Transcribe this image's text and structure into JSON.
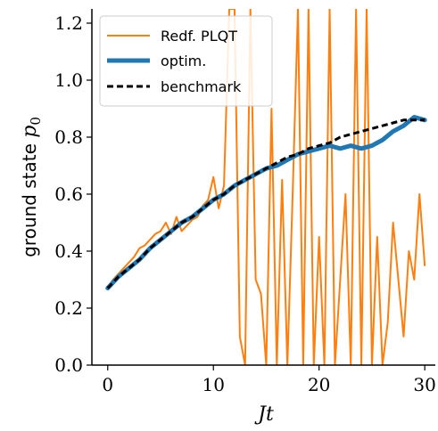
{
  "chart_data": {
    "type": "line",
    "xlabel": "Jt",
    "ylabel_prefix": "ground state ",
    "ylabel_symbol": "p",
    "ylabel_subscript": "0",
    "xlim": [
      -1.5,
      31
    ],
    "ylim": [
      0,
      1.25
    ],
    "xticks": [
      0,
      10,
      20,
      30
    ],
    "xtick_labels": [
      "0",
      "10",
      "20",
      "30"
    ],
    "yticks": [
      0,
      0.2,
      0.4,
      0.6,
      0.8,
      1.0,
      1.2
    ],
    "ytick_labels": [
      "0.0",
      "0.2",
      "0.4",
      "0.6",
      "0.8",
      "1.0",
      "1.2"
    ],
    "grid": false,
    "legend_position": "top-left",
    "series": [
      {
        "name": "Redf. PLQT",
        "color": "#ff7f0e",
        "style": "solid",
        "x": [
          0,
          0.5,
          1,
          1.5,
          2,
          2.5,
          3,
          3.5,
          4,
          4.5,
          5,
          5.5,
          6,
          6.5,
          7,
          7.5,
          8,
          8.5,
          9,
          9.5,
          10,
          10.5,
          11,
          11.5,
          12,
          12.5,
          13,
          13.5,
          14,
          14.5,
          15,
          15.5,
          16,
          16.5,
          17,
          17.5,
          18,
          18.5,
          19,
          19.5,
          20,
          20.5,
          21,
          21.5,
          22,
          22.5,
          23,
          23.5,
          24,
          24.5,
          25,
          25.5,
          26,
          26.5,
          27,
          27.5,
          28,
          28.5,
          29,
          29.5,
          30
        ],
        "values": [
          0.27,
          0.3,
          0.32,
          0.34,
          0.36,
          0.38,
          0.41,
          0.42,
          0.44,
          0.46,
          0.47,
          0.5,
          0.46,
          0.52,
          0.47,
          0.49,
          0.51,
          0.52,
          0.56,
          0.58,
          0.66,
          0.55,
          0.63,
          1.25,
          1.25,
          0.1,
          0.0,
          1.25,
          0.3,
          0.25,
          0.0,
          0.9,
          0.0,
          0.65,
          0.0,
          0.6,
          1.25,
          0.0,
          1.25,
          0.0,
          0.45,
          0.0,
          1.25,
          0.0,
          0.3,
          0.6,
          0.0,
          1.25,
          0.0,
          1.25,
          0.0,
          0.45,
          0.0,
          0.15,
          0.5,
          0.3,
          0.1,
          0.4,
          0.3,
          0.6,
          0.35
        ]
      },
      {
        "name": "optim.",
        "color": "#1f77b4",
        "style": "solid",
        "x": [
          0,
          1,
          2,
          3,
          4,
          5,
          6,
          7,
          8,
          9,
          10,
          11,
          12,
          13,
          14,
          15,
          16,
          17,
          18,
          19,
          20,
          21,
          22,
          23,
          24,
          25,
          26,
          27,
          28,
          29,
          30
        ],
        "values": [
          0.27,
          0.31,
          0.34,
          0.37,
          0.41,
          0.44,
          0.47,
          0.5,
          0.52,
          0.55,
          0.58,
          0.6,
          0.63,
          0.65,
          0.67,
          0.69,
          0.7,
          0.72,
          0.74,
          0.75,
          0.76,
          0.77,
          0.76,
          0.77,
          0.76,
          0.77,
          0.79,
          0.82,
          0.84,
          0.87,
          0.86
        ]
      },
      {
        "name": "benchmark",
        "color": "#000000",
        "style": "dashed",
        "x": [
          0,
          1,
          2,
          3,
          4,
          5,
          6,
          7,
          8,
          9,
          10,
          11,
          12,
          13,
          14,
          15,
          16,
          17,
          18,
          19,
          20,
          21,
          22,
          23,
          24,
          25,
          26,
          27,
          28,
          29,
          30
        ],
        "values": [
          0.27,
          0.31,
          0.34,
          0.37,
          0.41,
          0.44,
          0.47,
          0.5,
          0.52,
          0.55,
          0.58,
          0.6,
          0.63,
          0.65,
          0.67,
          0.69,
          0.71,
          0.73,
          0.74,
          0.76,
          0.77,
          0.78,
          0.8,
          0.81,
          0.82,
          0.83,
          0.84,
          0.85,
          0.86,
          0.86,
          0.86
        ]
      }
    ]
  }
}
